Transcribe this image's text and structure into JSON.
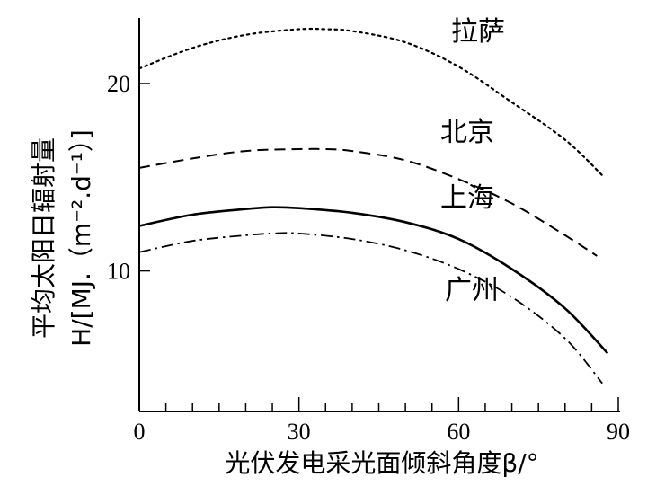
{
  "chart_data": {
    "type": "line",
    "xlabel": "光伏发电采光面倾斜角度β/°",
    "ylabel_line1": "平均太阳日辐射量",
    "ylabel_line2": "H/[MJ.（m⁻².d⁻¹）]",
    "xlim": [
      0,
      90
    ],
    "ylim": [
      2.5,
      23.5
    ],
    "x_ticks": [
      0,
      30,
      60,
      90
    ],
    "y_ticks": [
      10,
      20
    ],
    "grid": false,
    "series": [
      {
        "name": "拉萨",
        "style": "dotted",
        "x": [
          0,
          10,
          20,
          30,
          35,
          40,
          50,
          60,
          70,
          80,
          87
        ],
        "y": [
          20.8,
          21.9,
          22.6,
          22.9,
          22.9,
          22.8,
          22.2,
          20.9,
          19.0,
          17.0,
          15.1
        ]
      },
      {
        "name": "北京",
        "style": "dashed",
        "x": [
          0,
          10,
          20,
          30,
          35,
          40,
          50,
          60,
          70,
          80,
          86
        ],
        "y": [
          15.5,
          16.0,
          16.4,
          16.5,
          16.5,
          16.4,
          15.9,
          14.9,
          13.6,
          11.9,
          10.8
        ]
      },
      {
        "name": "上海",
        "style": "solid",
        "x": [
          0,
          10,
          20,
          25,
          30,
          40,
          50,
          60,
          70,
          80,
          88
        ],
        "y": [
          12.4,
          13.0,
          13.3,
          13.4,
          13.35,
          13.1,
          12.6,
          11.7,
          10.1,
          8.0,
          5.6
        ]
      },
      {
        "name": "广州",
        "style": "dashdot",
        "x": [
          0,
          10,
          20,
          25,
          30,
          40,
          50,
          60,
          70,
          80,
          87
        ],
        "y": [
          11.0,
          11.6,
          11.9,
          12.0,
          12.0,
          11.7,
          11.1,
          10.1,
          8.6,
          6.4,
          4.0
        ]
      }
    ],
    "legend": "inline labels near each curve"
  }
}
